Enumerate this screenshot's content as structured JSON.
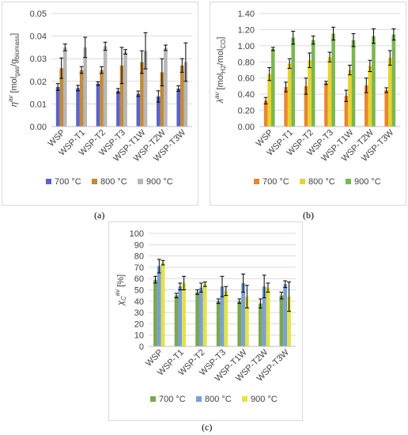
{
  "captions": [
    "(a)",
    "(b)",
    "(c)"
  ],
  "chart_data": [
    {
      "type": "bar",
      "panel": "a",
      "categories": [
        "WSP",
        "WSP-T1",
        "WSP-T2",
        "WSP-T3",
        "WSP-T1W",
        "WSP-T2W",
        "WSP-T3W"
      ],
      "ylabel": "η^av [mol_gas/g_biomass]",
      "ylabel_parts": {
        "main": "η",
        "sup": "av",
        "unit_open": " [mol",
        "sub1": "gas",
        "mid": "/g",
        "sub2": "biomass",
        "unit_close": "]"
      },
      "ylim": [
        0,
        0.05
      ],
      "yticks": [
        "0.00",
        "0.01",
        "0.02",
        "0.03",
        "0.04",
        "0.05"
      ],
      "ytick_values": [
        0,
        0.01,
        0.02,
        0.03,
        0.04,
        0.05
      ],
      "grid": true,
      "legend_position": "bottom",
      "series": [
        {
          "name": "700 °C",
          "color": "#5b63c7",
          "values": [
            0.0175,
            0.017,
            0.019,
            0.0158,
            0.0145,
            0.0133,
            0.0168
          ],
          "errors": [
            0.0015,
            0.0012,
            0.0008,
            0.001,
            0.0012,
            0.0025,
            0.0012
          ]
        },
        {
          "name": "800 °C",
          "color": "#c28a3a",
          "values": [
            0.0258,
            0.025,
            0.025,
            0.027,
            0.0285,
            0.024,
            0.027
          ],
          "errors": [
            0.0045,
            0.0015,
            0.0015,
            0.008,
            0.005,
            0.006,
            0.003
          ]
        },
        {
          "name": "900 °C",
          "color": "#b7b7b7",
          "values": [
            0.035,
            0.035,
            0.0355,
            0.033,
            0.0335,
            0.0348,
            0.0285
          ],
          "errors": [
            0.0015,
            0.0045,
            0.0018,
            0.001,
            0.008,
            0.0012,
            0.0085
          ]
        }
      ]
    },
    {
      "type": "bar",
      "panel": "b",
      "categories": [
        "WSP",
        "WSP-T1",
        "WSP-T2",
        "WSP-T3",
        "WSP-T1W",
        "WSP-T2W",
        "WSP-T3W"
      ],
      "ylabel": "λ^av [mol_H2/mol_CO]",
      "ylabel_parts": {
        "main": "λ",
        "sup": "av",
        "unit_open": " [mol",
        "sub1": "H2",
        "mid": "/mol",
        "sub2": "CO",
        "unit_close": "]"
      },
      "ylim": [
        0,
        1.4
      ],
      "yticks": [
        "0.00",
        "0.20",
        "0.40",
        "0.60",
        "0.80",
        "1.00",
        "1.20",
        "1.40"
      ],
      "ytick_values": [
        0,
        0.2,
        0.4,
        0.6,
        0.8,
        1.0,
        1.2,
        1.4
      ],
      "grid": true,
      "legend_position": "bottom",
      "series": [
        {
          "name": "700 °C",
          "color": "#e8862f",
          "values": [
            0.32,
            0.49,
            0.5,
            0.54,
            0.38,
            0.51,
            0.45
          ],
          "errors": [
            0.04,
            0.06,
            0.1,
            0.02,
            0.07,
            0.09,
            0.03
          ]
        },
        {
          "name": "800 °C",
          "color": "#e8d32c",
          "values": [
            0.65,
            0.78,
            0.82,
            0.86,
            0.7,
            0.75,
            0.85
          ],
          "errors": [
            0.08,
            0.06,
            0.09,
            0.06,
            0.06,
            0.07,
            0.09
          ]
        },
        {
          "name": "900 °C",
          "color": "#7bb652",
          "values": [
            0.96,
            1.1,
            1.07,
            1.15,
            1.07,
            1.12,
            1.14
          ],
          "errors": [
            0.02,
            0.08,
            0.05,
            0.08,
            0.08,
            0.09,
            0.07
          ]
        }
      ]
    },
    {
      "type": "bar",
      "panel": "c",
      "categories": [
        "WSP",
        "WSP-T1",
        "WSP-T2",
        "WSP-T3",
        "WSP-T1W",
        "WSP-T2W",
        "WSP-T3W"
      ],
      "ylabel": "χ_C^av [%]",
      "ylabel_parts": {
        "main": "χ",
        "sub1": "C",
        "sup": "av",
        "unit_close": " [%]"
      },
      "ylim": [
        0,
        100
      ],
      "yticks": [
        "0",
        "10",
        "20",
        "30",
        "40",
        "50",
        "60",
        "70",
        "80",
        "90",
        "100"
      ],
      "ytick_values": [
        0,
        10,
        20,
        30,
        40,
        50,
        60,
        70,
        80,
        90,
        100
      ],
      "grid": true,
      "legend_position": "bottom",
      "series": [
        {
          "name": "700 °C",
          "color": "#7aa850",
          "values": [
            59,
            45,
            48,
            40,
            40,
            38,
            45
          ],
          "errors": [
            3,
            2,
            2,
            2,
            2,
            4,
            3
          ]
        },
        {
          "name": "800 °C",
          "color": "#7b9fd6",
          "values": [
            71,
            53,
            52,
            53,
            56,
            53,
            55
          ],
          "errors": [
            6,
            3,
            4,
            9,
            8,
            10,
            3
          ]
        },
        {
          "name": "900 °C",
          "color": "#e3e34a",
          "values": [
            74,
            56,
            55,
            49,
            44,
            52,
            44
          ],
          "errors": [
            2,
            6,
            2,
            4,
            10,
            4,
            13
          ]
        }
      ]
    }
  ]
}
